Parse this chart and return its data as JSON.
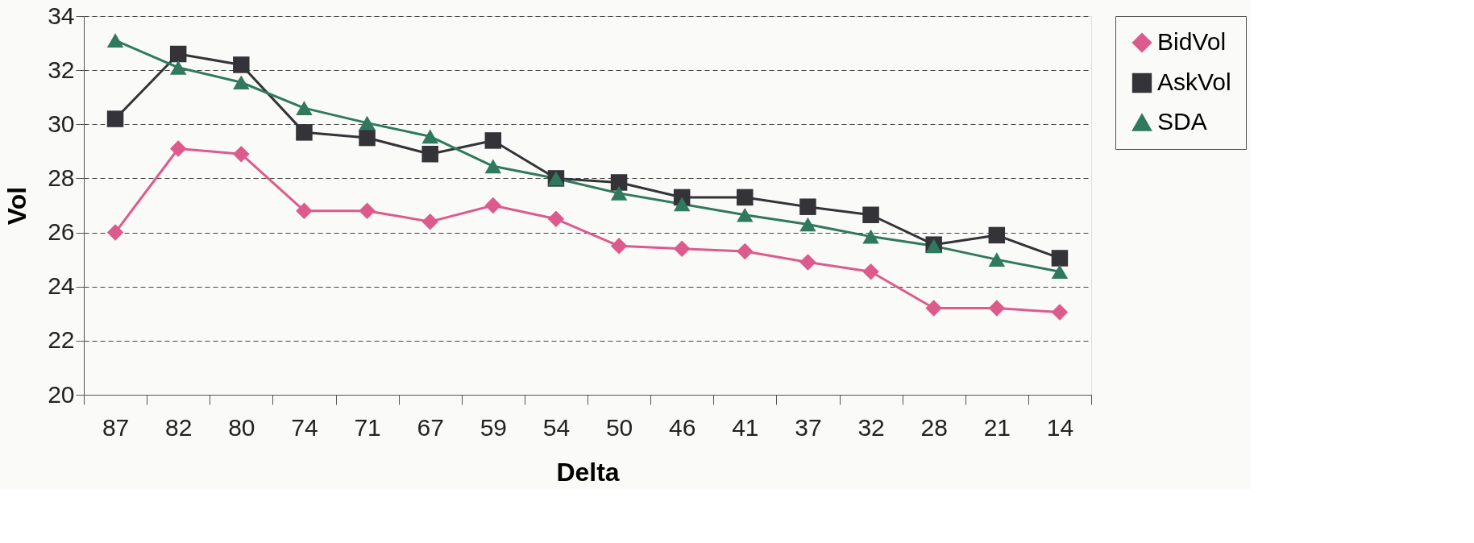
{
  "chart_data": {
    "type": "line",
    "xlabel": "Delta",
    "ylabel": "Vol",
    "categories": [
      "87",
      "82",
      "80",
      "74",
      "71",
      "67",
      "59",
      "54",
      "50",
      "46",
      "41",
      "37",
      "32",
      "28",
      "21",
      "14"
    ],
    "series": [
      {
        "name": "BidVol",
        "color": "#dd5a8c",
        "marker": "diamond",
        "values": [
          26.0,
          29.1,
          28.9,
          26.8,
          26.8,
          26.4,
          27.0,
          26.5,
          25.5,
          25.4,
          25.3,
          24.9,
          24.55,
          23.2,
          23.2,
          23.05
        ]
      },
      {
        "name": "AskVol",
        "color": "#333338",
        "marker": "square",
        "values": [
          30.2,
          32.6,
          32.2,
          29.7,
          29.5,
          28.9,
          29.4,
          28.0,
          27.85,
          27.3,
          27.3,
          26.95,
          26.65,
          25.55,
          25.9,
          25.05
        ]
      },
      {
        "name": "SDA",
        "color": "#2f7a5e",
        "marker": "triangle",
        "values": [
          33.1,
          32.1,
          31.55,
          30.6,
          30.05,
          29.55,
          28.45,
          28.0,
          27.45,
          27.05,
          26.65,
          26.3,
          25.85,
          25.5,
          25.0,
          24.55
        ]
      }
    ],
    "ylim": [
      20,
      34
    ],
    "yticks": [
      20,
      22,
      24,
      26,
      28,
      30,
      32,
      34
    ],
    "grid": "y",
    "legend": "right",
    "line_style": "solid"
  }
}
